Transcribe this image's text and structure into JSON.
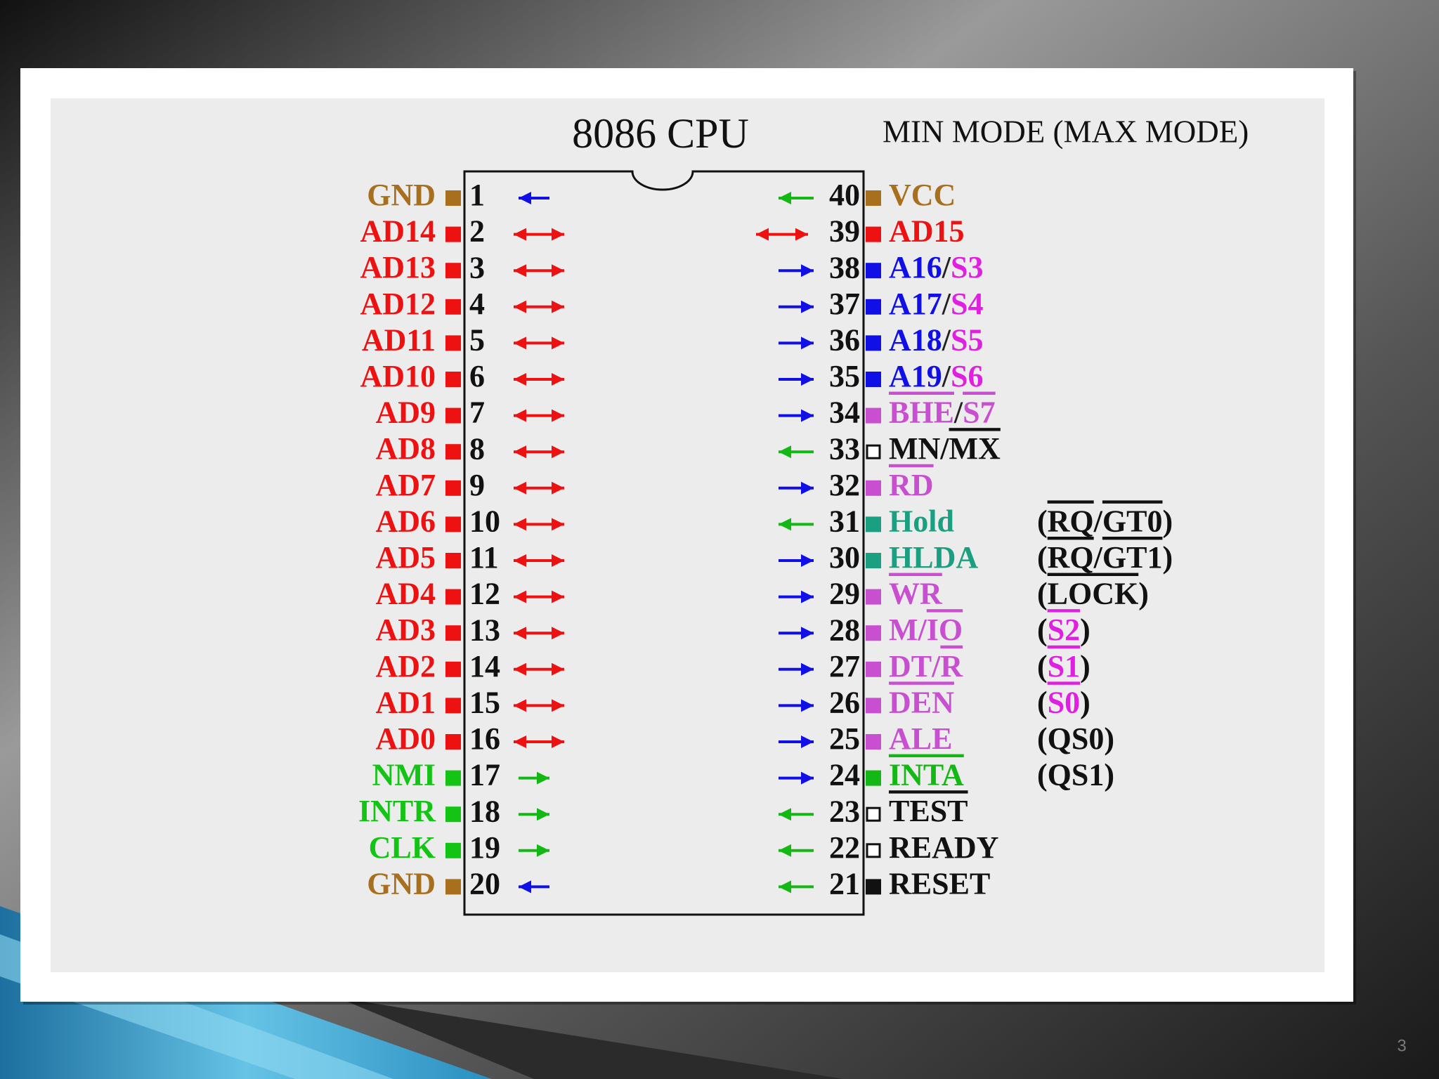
{
  "title": "8086 CPU",
  "mode_heading": "MIN MODE (MAX MODE)",
  "page_number": "3",
  "arrow_colors": {
    "in": "#14b814",
    "out": "#1010e6",
    "both": "#ee1111"
  },
  "left_pins": [
    {
      "number": 1,
      "name": [
        {
          "text": "GND",
          "color": "#a8701e"
        }
      ],
      "marker": "#a8701e",
      "arrow": "out"
    },
    {
      "number": 2,
      "name": [
        {
          "text": "AD14",
          "color": "#ee1111"
        }
      ],
      "marker": "#ee1111",
      "arrow": "both"
    },
    {
      "number": 3,
      "name": [
        {
          "text": "AD13",
          "color": "#ee1111"
        }
      ],
      "marker": "#ee1111",
      "arrow": "both"
    },
    {
      "number": 4,
      "name": [
        {
          "text": "AD12",
          "color": "#ee1111"
        }
      ],
      "marker": "#ee1111",
      "arrow": "both"
    },
    {
      "number": 5,
      "name": [
        {
          "text": "AD11",
          "color": "#ee1111"
        }
      ],
      "marker": "#ee1111",
      "arrow": "both"
    },
    {
      "number": 6,
      "name": [
        {
          "text": "AD10",
          "color": "#ee1111"
        }
      ],
      "marker": "#ee1111",
      "arrow": "both"
    },
    {
      "number": 7,
      "name": [
        {
          "text": "AD9",
          "color": "#ee1111"
        }
      ],
      "marker": "#ee1111",
      "arrow": "both"
    },
    {
      "number": 8,
      "name": [
        {
          "text": "AD8",
          "color": "#ee1111"
        }
      ],
      "marker": "#ee1111",
      "arrow": "both"
    },
    {
      "number": 9,
      "name": [
        {
          "text": "AD7",
          "color": "#ee1111"
        }
      ],
      "marker": "#ee1111",
      "arrow": "both"
    },
    {
      "number": 10,
      "name": [
        {
          "text": "AD6",
          "color": "#ee1111"
        }
      ],
      "marker": "#ee1111",
      "arrow": "both"
    },
    {
      "number": 11,
      "name": [
        {
          "text": "AD5",
          "color": "#ee1111"
        }
      ],
      "marker": "#ee1111",
      "arrow": "both"
    },
    {
      "number": 12,
      "name": [
        {
          "text": "AD4",
          "color": "#ee1111"
        }
      ],
      "marker": "#ee1111",
      "arrow": "both"
    },
    {
      "number": 13,
      "name": [
        {
          "text": "AD3",
          "color": "#ee1111"
        }
      ],
      "marker": "#ee1111",
      "arrow": "both"
    },
    {
      "number": 14,
      "name": [
        {
          "text": "AD2",
          "color": "#ee1111"
        }
      ],
      "marker": "#ee1111",
      "arrow": "both"
    },
    {
      "number": 15,
      "name": [
        {
          "text": "AD1",
          "color": "#ee1111"
        }
      ],
      "marker": "#ee1111",
      "arrow": "both"
    },
    {
      "number": 16,
      "name": [
        {
          "text": "AD0",
          "color": "#ee1111"
        }
      ],
      "marker": "#ee1111",
      "arrow": "both"
    },
    {
      "number": 17,
      "name": [
        {
          "text": "NMI",
          "color": "#14c414"
        }
      ],
      "marker": "#14c414",
      "arrow": "in"
    },
    {
      "number": 18,
      "name": [
        {
          "text": "INTR",
          "color": "#14c414"
        }
      ],
      "marker": "#14c414",
      "arrow": "in"
    },
    {
      "number": 19,
      "name": [
        {
          "text": "CLK",
          "color": "#14c414"
        }
      ],
      "marker": "#14c414",
      "arrow": "in"
    },
    {
      "number": 20,
      "name": [
        {
          "text": "GND",
          "color": "#a8701e"
        }
      ],
      "marker": "#a8701e",
      "arrow": "out"
    }
  ],
  "right_pins": [
    {
      "number": 40,
      "name": [
        {
          "text": "VCC",
          "color": "#a8701e"
        }
      ],
      "marker": "#a8701e",
      "arrow": "in"
    },
    {
      "number": 39,
      "name": [
        {
          "text": "AD15",
          "color": "#ee1111"
        }
      ],
      "marker": "#ee1111",
      "arrow": "both"
    },
    {
      "number": 38,
      "name": [
        {
          "text": "A16",
          "color": "#1010e6"
        },
        {
          "text": "/",
          "color": "#222222"
        },
        {
          "text": "S3",
          "color": "#e020e0"
        }
      ],
      "marker": "#1010e6",
      "arrow": "out"
    },
    {
      "number": 37,
      "name": [
        {
          "text": "A17",
          "color": "#1010e6"
        },
        {
          "text": "/",
          "color": "#222222"
        },
        {
          "text": "S4",
          "color": "#e020e0"
        }
      ],
      "marker": "#1010e6",
      "arrow": "out"
    },
    {
      "number": 36,
      "name": [
        {
          "text": "A18",
          "color": "#1010e6"
        },
        {
          "text": "/",
          "color": "#222222"
        },
        {
          "text": "S5",
          "color": "#e020e0"
        }
      ],
      "marker": "#1010e6",
      "arrow": "out"
    },
    {
      "number": 35,
      "name": [
        {
          "text": "A19",
          "color": "#1010e6"
        },
        {
          "text": "/",
          "color": "#222222"
        },
        {
          "text": "S6",
          "color": "#e020e0"
        }
      ],
      "marker": "#1010e6",
      "arrow": "out"
    },
    {
      "number": 34,
      "name": [
        {
          "text": "BHE",
          "color": "#c850d0",
          "bar": true
        },
        {
          "text": "/",
          "color": "#222222"
        },
        {
          "text": "S7",
          "color": "#c850d0",
          "bar": true
        }
      ],
      "marker": "#c850d0",
      "arrow": "out"
    },
    {
      "number": 33,
      "name": [
        {
          "text": "MN/",
          "color": "#111111"
        },
        {
          "text": "MX",
          "color": "#111111",
          "bar": true
        }
      ],
      "marker": "hollow",
      "arrow": "in"
    },
    {
      "number": 32,
      "name": [
        {
          "text": "RD",
          "color": "#c850d0",
          "bar": true
        }
      ],
      "marker": "#c850d0",
      "arrow": "out"
    },
    {
      "number": 31,
      "name": [
        {
          "text": "Hold",
          "color": "#1aa080"
        }
      ],
      "marker": "#1aa080",
      "arrow": "in",
      "max_mode": [
        {
          "text": "(",
          "color": "#111111"
        },
        {
          "text": "RQ",
          "color": "#111111",
          "bar": true
        },
        {
          "text": "/",
          "color": "#111111"
        },
        {
          "text": "GT0",
          "color": "#111111",
          "bar": true
        },
        {
          "text": ")",
          "color": "#111111"
        }
      ]
    },
    {
      "number": 30,
      "name": [
        {
          "text": "HLDA",
          "color": "#1aa080"
        }
      ],
      "marker": "#1aa080",
      "arrow": "out",
      "max_mode": [
        {
          "text": "(",
          "color": "#111111"
        },
        {
          "text": "RQ",
          "color": "#111111",
          "bar": true
        },
        {
          "text": "/",
          "color": "#111111"
        },
        {
          "text": "GT1",
          "color": "#111111",
          "bar": true
        },
        {
          "text": ")",
          "color": "#111111"
        }
      ]
    },
    {
      "number": 29,
      "name": [
        {
          "text": "WR",
          "color": "#c850d0",
          "bar": true
        }
      ],
      "marker": "#c850d0",
      "arrow": "out",
      "max_mode": [
        {
          "text": "(",
          "color": "#111111"
        },
        {
          "text": "LOCK",
          "color": "#111111",
          "bar": true
        },
        {
          "text": ")",
          "color": "#111111"
        }
      ]
    },
    {
      "number": 28,
      "name": [
        {
          "text": "M/",
          "color": "#c850d0"
        },
        {
          "text": "IO",
          "color": "#c850d0",
          "bar": true
        }
      ],
      "marker": "#c850d0",
      "arrow": "out",
      "max_mode": [
        {
          "text": "(",
          "color": "#111111"
        },
        {
          "text": "S2",
          "color": "#e020e0",
          "bar": true
        },
        {
          "text": ")",
          "color": "#111111"
        }
      ]
    },
    {
      "number": 27,
      "name": [
        {
          "text": "DT/",
          "color": "#c850d0"
        },
        {
          "text": "R",
          "color": "#c850d0",
          "bar": true
        }
      ],
      "marker": "#c850d0",
      "arrow": "out",
      "max_mode": [
        {
          "text": "(",
          "color": "#111111"
        },
        {
          "text": "S1",
          "color": "#e020e0",
          "bar": true
        },
        {
          "text": ")",
          "color": "#111111"
        }
      ]
    },
    {
      "number": 26,
      "name": [
        {
          "text": "DEN",
          "color": "#c850d0",
          "bar": true
        }
      ],
      "marker": "#c850d0",
      "arrow": "out",
      "max_mode": [
        {
          "text": "(",
          "color": "#111111"
        },
        {
          "text": "S0",
          "color": "#e020e0",
          "bar": true
        },
        {
          "text": ")",
          "color": "#111111"
        }
      ]
    },
    {
      "number": 25,
      "name": [
        {
          "text": "ALE",
          "color": "#c850d0"
        }
      ],
      "marker": "#c850d0",
      "arrow": "out",
      "max_mode": [
        {
          "text": "(QS0)",
          "color": "#111111"
        }
      ]
    },
    {
      "number": 24,
      "name": [
        {
          "text": "INTA",
          "color": "#14b814",
          "bar": true
        }
      ],
      "marker": "#14b814",
      "arrow": "out",
      "max_mode": [
        {
          "text": "(QS1)",
          "color": "#111111"
        }
      ]
    },
    {
      "number": 23,
      "name": [
        {
          "text": "TEST",
          "color": "#111111",
          "bar": true
        }
      ],
      "marker": "hollow",
      "arrow": "in"
    },
    {
      "number": 22,
      "name": [
        {
          "text": "READY",
          "color": "#111111"
        }
      ],
      "marker": "hollow",
      "arrow": "in"
    },
    {
      "number": 21,
      "name": [
        {
          "text": "RESET",
          "color": "#111111"
        }
      ],
      "marker": "#111111",
      "arrow": "in"
    }
  ]
}
